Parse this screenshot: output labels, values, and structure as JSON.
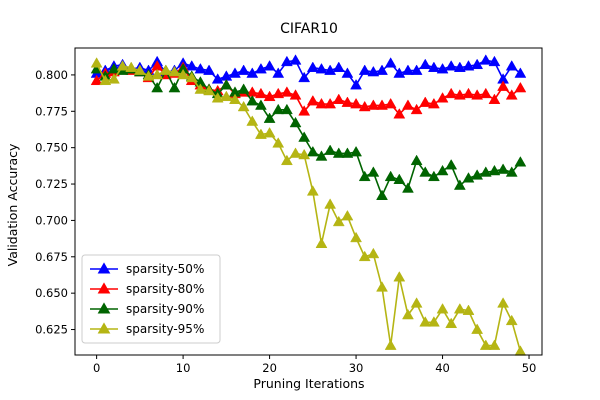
{
  "chart_data": {
    "type": "line",
    "title": "CIFAR10",
    "xlabel": "Pruning Iterations",
    "ylabel": "Validation Accuracy",
    "xlim": [
      -2.5,
      51.5
    ],
    "ylim": [
      0.6075,
      0.8185
    ],
    "xticks": [
      0,
      10,
      20,
      30,
      40,
      50
    ],
    "yticks": [
      0.625,
      0.65,
      0.675,
      0.7,
      0.725,
      0.75,
      0.775,
      0.8
    ],
    "ytick_labels": [
      "0.625",
      "0.650",
      "0.675",
      "0.700",
      "0.725",
      "0.750",
      "0.775",
      "0.800"
    ],
    "grid": false,
    "legend": {
      "placement": "lower-left"
    },
    "series": [
      {
        "name": "sparsity-50%",
        "color": "#0000ff",
        "marker": "triangle-up",
        "values": [
          0.801,
          0.803,
          0.806,
          0.807,
          0.804,
          0.805,
          0.803,
          0.809,
          0.802,
          0.803,
          0.808,
          0.806,
          0.804,
          0.803,
          0.797,
          0.799,
          0.801,
          0.803,
          0.801,
          0.804,
          0.806,
          0.801,
          0.809,
          0.81,
          0.798,
          0.805,
          0.804,
          0.803,
          0.805,
          0.801,
          0.793,
          0.803,
          0.802,
          0.803,
          0.808,
          0.801,
          0.803,
          0.803,
          0.807,
          0.805,
          0.804,
          0.806,
          0.805,
          0.806,
          0.807,
          0.81,
          0.809,
          0.797,
          0.806,
          0.801
        ]
      },
      {
        "name": "sparsity-80%",
        "color": "#ff0000",
        "marker": "triangle-up",
        "values": [
          0.796,
          0.801,
          0.802,
          0.804,
          0.803,
          0.802,
          0.798,
          0.806,
          0.8,
          0.801,
          0.805,
          0.796,
          0.793,
          0.79,
          0.789,
          0.793,
          0.787,
          0.788,
          0.788,
          0.787,
          0.785,
          0.787,
          0.788,
          0.786,
          0.775,
          0.782,
          0.78,
          0.78,
          0.783,
          0.781,
          0.78,
          0.778,
          0.779,
          0.779,
          0.78,
          0.773,
          0.779,
          0.776,
          0.781,
          0.78,
          0.784,
          0.787,
          0.786,
          0.787,
          0.786,
          0.787,
          0.783,
          0.792,
          0.786,
          0.791
        ]
      },
      {
        "name": "sparsity-90%",
        "color": "#006400",
        "marker": "triangle-up",
        "values": [
          0.804,
          0.799,
          0.804,
          0.803,
          0.804,
          0.802,
          0.8,
          0.791,
          0.803,
          0.791,
          0.804,
          0.799,
          0.795,
          0.79,
          0.787,
          0.793,
          0.788,
          0.79,
          0.782,
          0.779,
          0.77,
          0.776,
          0.776,
          0.767,
          0.757,
          0.747,
          0.744,
          0.748,
          0.746,
          0.746,
          0.747,
          0.73,
          0.733,
          0.717,
          0.73,
          0.728,
          0.722,
          0.741,
          0.733,
          0.73,
          0.734,
          0.738,
          0.724,
          0.729,
          0.731,
          0.733,
          0.734,
          0.735,
          0.733,
          0.74
        ]
      },
      {
        "name": "sparsity-95%",
        "color": "#b5b514",
        "marker": "triangle-up",
        "values": [
          0.808,
          0.796,
          0.797,
          0.806,
          0.805,
          0.803,
          0.799,
          0.8,
          0.803,
          0.802,
          0.8,
          0.798,
          0.79,
          0.789,
          0.784,
          0.785,
          0.783,
          0.778,
          0.768,
          0.759,
          0.76,
          0.753,
          0.741,
          0.746,
          0.745,
          0.72,
          0.684,
          0.711,
          0.699,
          0.703,
          0.688,
          0.675,
          0.677,
          0.654,
          0.614,
          0.661,
          0.635,
          0.643,
          0.63,
          0.63,
          0.639,
          0.629,
          0.639,
          0.638,
          0.625,
          0.614,
          0.614,
          0.643,
          0.631,
          0.61
        ]
      }
    ]
  }
}
